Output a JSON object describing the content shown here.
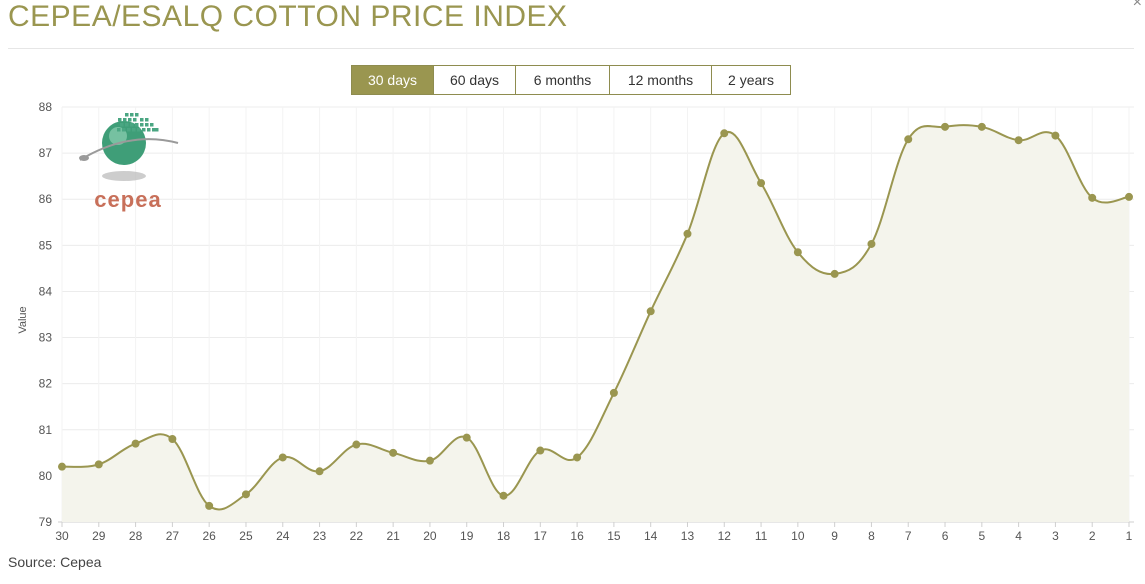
{
  "header": {
    "title": "CEPEA/ESALQ COTTON PRICE INDEX",
    "close_glyph": "×"
  },
  "range_tabs": [
    {
      "label": "30 days",
      "active": true
    },
    {
      "label": "60 days",
      "active": false
    },
    {
      "label": "6 months",
      "active": false
    },
    {
      "label": "12 months",
      "active": false
    },
    {
      "label": "2 years",
      "active": false
    }
  ],
  "logo": {
    "text": "cepea",
    "icon": "cepea-globe-logo"
  },
  "footer": {
    "source": "Source: Cepea"
  },
  "colors": {
    "accent": "#9a9650",
    "line": "#9a9650",
    "area": "#f4f4ec",
    "logo_text": "#c8705a",
    "grid": "#ececec"
  },
  "chart_data": {
    "type": "area",
    "title": "",
    "xlabel": "",
    "ylabel": "Value",
    "ylim": [
      79,
      88
    ],
    "yticks": [
      79,
      80,
      81,
      82,
      83,
      84,
      85,
      86,
      87,
      88
    ],
    "grid": true,
    "smooth": true,
    "categories": [
      "30",
      "29",
      "28",
      "27",
      "26",
      "25",
      "24",
      "23",
      "22",
      "21",
      "20",
      "19",
      "18",
      "17",
      "16",
      "15",
      "14",
      "13",
      "12",
      "11",
      "10",
      "9",
      "8",
      "7",
      "6",
      "5",
      "4",
      "3",
      "2",
      "1"
    ],
    "series": [
      {
        "values": [
          80.2,
          80.25,
          80.7,
          80.8,
          79.35,
          79.6,
          80.4,
          80.1,
          80.68,
          80.5,
          80.33,
          80.83,
          79.57,
          80.55,
          80.4,
          81.8,
          83.57,
          85.25,
          87.43,
          86.35,
          84.85,
          84.38,
          85.03,
          87.3,
          87.57,
          87.57,
          87.28,
          87.38,
          86.03,
          86.05
        ]
      }
    ]
  }
}
